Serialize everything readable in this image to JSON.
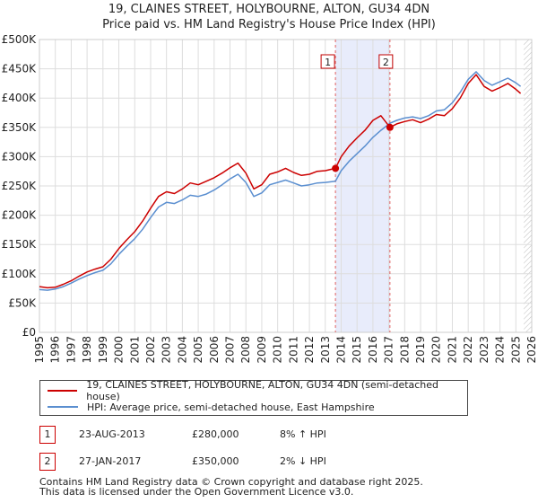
{
  "chart_data": {
    "type": "line",
    "title": "19, CLAINES STREET, HOLYBOURNE, ALTON, GU34 4DN",
    "subtitle": "Price paid vs. HM Land Registry's House Price Index (HPI)",
    "xlabel": "",
    "ylabel": "",
    "xlim": [
      1995,
      2026
    ],
    "ylim": [
      0,
      500000
    ],
    "y_ticks": [
      {
        "value": 0,
        "label": "£0"
      },
      {
        "value": 50000,
        "label": "£50K"
      },
      {
        "value": 100000,
        "label": "£100K"
      },
      {
        "value": 150000,
        "label": "£150K"
      },
      {
        "value": 200000,
        "label": "£200K"
      },
      {
        "value": 250000,
        "label": "£250K"
      },
      {
        "value": 300000,
        "label": "£300K"
      },
      {
        "value": 350000,
        "label": "£350K"
      },
      {
        "value": 400000,
        "label": "£400K"
      },
      {
        "value": 450000,
        "label": "£450K"
      },
      {
        "value": 500000,
        "label": "£500K"
      }
    ],
    "x_ticks": [
      "1995",
      "1996",
      "1997",
      "1998",
      "1999",
      "2000",
      "2001",
      "2002",
      "2003",
      "2004",
      "2005",
      "2006",
      "2007",
      "2008",
      "2009",
      "2010",
      "2011",
      "2012",
      "2013",
      "2014",
      "2015",
      "2016",
      "2017",
      "2018",
      "2019",
      "2020",
      "2021",
      "2022",
      "2023",
      "2024",
      "2025",
      "2026"
    ],
    "grid": true,
    "shaded_span": [
      2013.64,
      2017.07
    ],
    "hatched_after": 2025.5,
    "series": [
      {
        "name": "19, CLAINES STREET, HOLYBOURNE, ALTON, GU34 4DN (semi-detached house)",
        "color": "#cc0000",
        "x": [
          1995.0,
          1995.5,
          1996.0,
          1996.5,
          1997.0,
          1997.5,
          1998.0,
          1998.5,
          1999.0,
          1999.5,
          2000.0,
          2000.5,
          2001.0,
          2001.5,
          2002.0,
          2002.5,
          2003.0,
          2003.5,
          2004.0,
          2004.5,
          2005.0,
          2005.5,
          2006.0,
          2006.5,
          2007.0,
          2007.5,
          2008.0,
          2008.5,
          2009.0,
          2009.5,
          2010.0,
          2010.5,
          2011.0,
          2011.5,
          2012.0,
          2012.5,
          2013.0,
          2013.64,
          2014.0,
          2014.5,
          2015.0,
          2015.5,
          2016.0,
          2016.5,
          2017.07,
          2017.5,
          2018.0,
          2018.5,
          2019.0,
          2019.5,
          2020.0,
          2020.5,
          2021.0,
          2021.5,
          2022.0,
          2022.5,
          2023.0,
          2023.5,
          2024.0,
          2024.5,
          2025.0,
          2025.3
        ],
        "values": [
          78000,
          76000,
          77000,
          82000,
          88000,
          96000,
          103000,
          108000,
          112000,
          125000,
          143000,
          158000,
          172000,
          190000,
          212000,
          232000,
          240000,
          237000,
          245000,
          255000,
          252000,
          258000,
          264000,
          272000,
          281000,
          289000,
          272000,
          245000,
          252000,
          270000,
          274000,
          280000,
          273000,
          268000,
          270000,
          275000,
          276000,
          280000,
          300000,
          318000,
          332000,
          345000,
          362000,
          370000,
          350000,
          356000,
          360000,
          363000,
          358000,
          364000,
          372000,
          370000,
          382000,
          400000,
          425000,
          440000,
          420000,
          412000,
          418000,
          425000,
          415000,
          408000
        ]
      },
      {
        "name": "HPI: Average price, semi-detached house, East Hampshire",
        "color": "#5b8fd0",
        "x": [
          1995.0,
          1995.5,
          1996.0,
          1996.5,
          1997.0,
          1997.5,
          1998.0,
          1998.5,
          1999.0,
          1999.5,
          2000.0,
          2000.5,
          2001.0,
          2001.5,
          2002.0,
          2002.5,
          2003.0,
          2003.5,
          2004.0,
          2004.5,
          2005.0,
          2005.5,
          2006.0,
          2006.5,
          2007.0,
          2007.5,
          2008.0,
          2008.5,
          2009.0,
          2009.5,
          2010.0,
          2010.5,
          2011.0,
          2011.5,
          2012.0,
          2012.5,
          2013.0,
          2013.64,
          2014.0,
          2014.5,
          2015.0,
          2015.5,
          2016.0,
          2016.5,
          2017.07,
          2017.5,
          2018.0,
          2018.5,
          2019.0,
          2019.5,
          2020.0,
          2020.5,
          2021.0,
          2021.5,
          2022.0,
          2022.5,
          2023.0,
          2023.5,
          2024.0,
          2024.5,
          2025.0,
          2025.3
        ],
        "values": [
          73000,
          72000,
          74000,
          78000,
          84000,
          91000,
          97000,
          102000,
          106000,
          117000,
          133000,
          147000,
          160000,
          176000,
          196000,
          214000,
          222000,
          220000,
          226000,
          234000,
          232000,
          236000,
          243000,
          252000,
          262000,
          270000,
          256000,
          232000,
          238000,
          252000,
          256000,
          260000,
          255000,
          250000,
          252000,
          255000,
          256000,
          258000,
          276000,
          292000,
          305000,
          318000,
          333000,
          345000,
          357000,
          362000,
          366000,
          368000,
          365000,
          370000,
          378000,
          380000,
          392000,
          410000,
          432000,
          445000,
          430000,
          422000,
          428000,
          434000,
          426000,
          420000
        ]
      }
    ],
    "sales": [
      {
        "label": "1",
        "x": 2013.64,
        "value": 280000
      },
      {
        "label": "2",
        "x": 2017.07,
        "value": 350000
      }
    ]
  },
  "legend": {
    "property_label": "19, CLAINES STREET, HOLYBOURNE, ALTON, GU34 4DN (semi-detached house)",
    "hpi_label": "HPI: Average price, semi-detached house, East Hampshire"
  },
  "sales_table": [
    {
      "num": "1",
      "date": "23-AUG-2013",
      "price": "£280,000",
      "hpi": "8% ↑ HPI"
    },
    {
      "num": "2",
      "date": "27-JAN-2017",
      "price": "£350,000",
      "hpi": "2% ↓ HPI"
    }
  ],
  "footer": {
    "line1": "Contains HM Land Registry data © Crown copyright and database right 2025.",
    "line2": "This data is licensed under the Open Government Licence v3.0."
  }
}
